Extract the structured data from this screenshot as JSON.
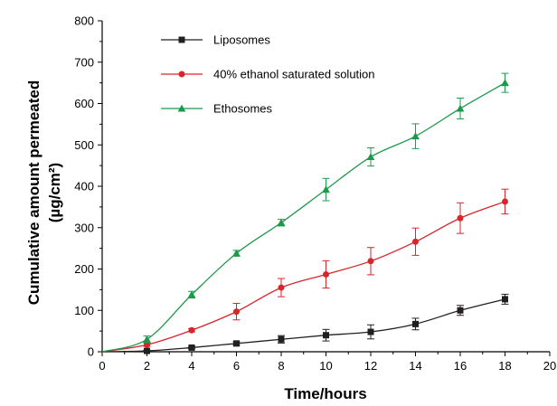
{
  "chart_data": {
    "type": "line",
    "title": "",
    "xlabel": "Time/hours",
    "ylabel_line1": "Cumulative amount permeated",
    "ylabel_line2": "(µg/cm²)",
    "xlim": [
      0,
      20
    ],
    "ylim": [
      0,
      800
    ],
    "xticks": [
      "0",
      "2",
      "4",
      "6",
      "8",
      "10",
      "12",
      "14",
      "16",
      "18",
      "20"
    ],
    "yticks": [
      "0",
      "100",
      "200",
      "300",
      "400",
      "500",
      "600",
      "700",
      "800"
    ],
    "grid": false,
    "legend_position": "top-left",
    "x": [
      0,
      2,
      4,
      6,
      8,
      10,
      12,
      14,
      16,
      18
    ],
    "series": [
      {
        "name": "Liposomes",
        "color": "#231f20",
        "marker": "square",
        "values": [
          0,
          2,
          10,
          20,
          30,
          40,
          48,
          67,
          100,
          127
        ],
        "errors": [
          0,
          2,
          3,
          4,
          9,
          14,
          17,
          14,
          12,
          12
        ]
      },
      {
        "name": "40% ethanol saturated solution",
        "color": "#d7252b",
        "marker": "circle",
        "values": [
          0,
          17,
          52,
          97,
          155,
          187,
          219,
          266,
          323,
          363
        ],
        "errors": [
          0,
          4,
          4,
          20,
          22,
          33,
          33,
          33,
          37,
          30
        ]
      },
      {
        "name": "Ethosomes",
        "color": "#1b9a4b",
        "marker": "triangle",
        "values": [
          0,
          30,
          138,
          238,
          312,
          392,
          471,
          521,
          588,
          650
        ],
        "errors": [
          0,
          8,
          8,
          7,
          8,
          27,
          22,
          30,
          25,
          23
        ]
      }
    ]
  }
}
